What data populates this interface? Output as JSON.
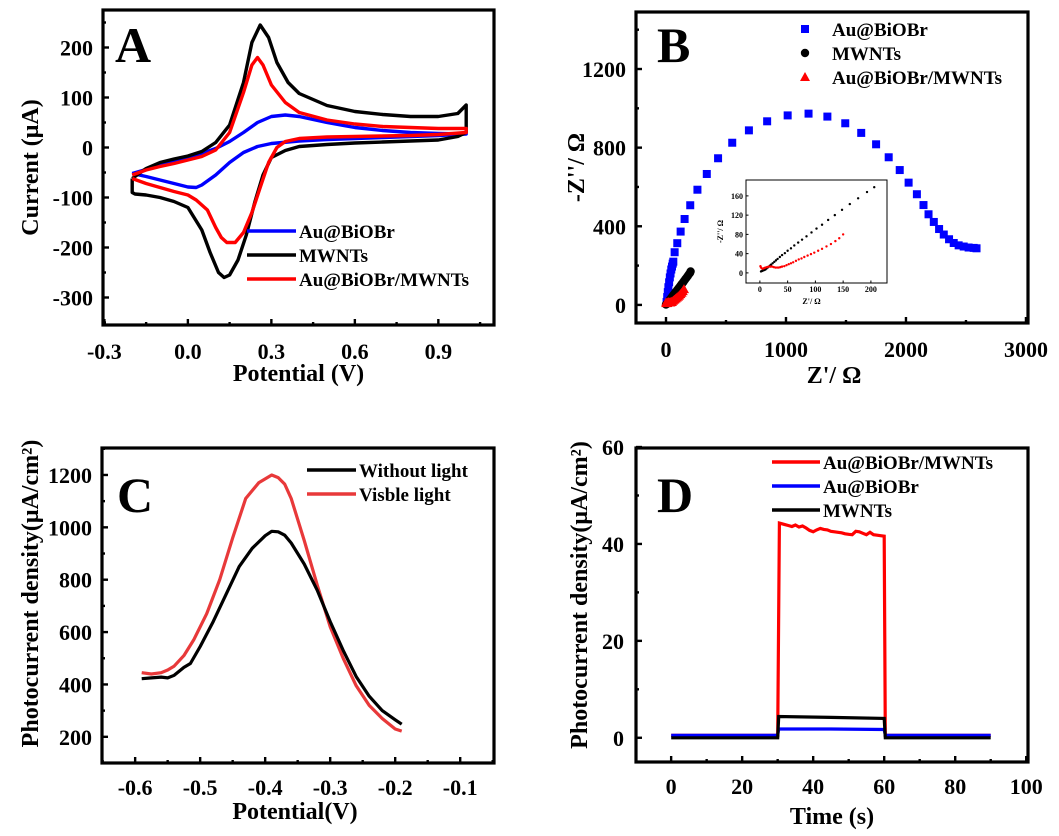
{
  "chart_data": [
    {
      "panel": "A",
      "type": "line",
      "title": "",
      "panel_label": "A",
      "xlabel": "Potential (V)",
      "ylabel": "Current (μA)",
      "xlim": [
        -0.305,
        1.1
      ],
      "ylim": [
        -355,
        275
      ],
      "xticks": [
        -0.3,
        0.0,
        0.3,
        0.6,
        0.9
      ],
      "xtick_labels": [
        "-0.3",
        "0.0",
        "0.3",
        "0.6",
        "0.9"
      ],
      "yticks": [
        -300,
        -200,
        -100,
        0,
        100,
        200
      ],
      "ytick_labels": [
        "-300",
        "-200",
        "-100",
        "0",
        "100",
        "200"
      ],
      "legend_position": "bottom-right",
      "series": [
        {
          "name": "Au@BiOBr",
          "color": "#0000ff",
          "x": [
            -0.2,
            -0.15,
            -0.1,
            -0.05,
            0.0,
            0.05,
            0.1,
            0.15,
            0.2,
            0.25,
            0.3,
            0.35,
            0.4,
            0.5,
            0.6,
            0.7,
            0.8,
            0.9,
            1.0,
            1.0,
            0.9,
            0.8,
            0.7,
            0.6,
            0.5,
            0.4,
            0.3,
            0.25,
            0.2,
            0.15,
            0.1,
            0.05,
            0.03,
            0.0,
            -0.05,
            -0.1,
            -0.15,
            -0.2
          ],
          "y": [
            -52,
            -44,
            -36,
            -28,
            -20,
            -12,
            -2,
            12,
            30,
            50,
            62,
            65,
            62,
            50,
            40,
            34,
            30,
            28,
            27,
            27,
            24,
            22,
            20,
            18,
            16,
            13,
            8,
            2,
            -10,
            -30,
            -55,
            -75,
            -80,
            -79,
            -72,
            -65,
            -58,
            -52
          ]
        },
        {
          "name": "MWNTs",
          "color": "#000000",
          "x": [
            -0.2,
            -0.15,
            -0.1,
            -0.05,
            0.0,
            0.05,
            0.1,
            0.15,
            0.2,
            0.23,
            0.26,
            0.29,
            0.32,
            0.36,
            0.4,
            0.5,
            0.6,
            0.7,
            0.8,
            0.9,
            0.97,
            1.0,
            1.0,
            0.97,
            0.93,
            0.9,
            0.8,
            0.7,
            0.6,
            0.5,
            0.4,
            0.35,
            0.3,
            0.27,
            0.24,
            0.21,
            0.18,
            0.15,
            0.13,
            0.11,
            0.08,
            0.05,
            0.0,
            -0.05,
            -0.1,
            -0.15,
            -0.19,
            -0.2,
            -0.2
          ],
          "y": [
            -62,
            -42,
            -30,
            -23,
            -17,
            -8,
            10,
            45,
            130,
            210,
            245,
            220,
            170,
            130,
            108,
            84,
            72,
            66,
            62,
            62,
            68,
            85,
            30,
            22,
            18,
            15,
            13,
            11,
            9,
            6,
            2,
            -6,
            -20,
            -55,
            -110,
            -175,
            -225,
            -255,
            -260,
            -250,
            -210,
            -165,
            -120,
            -108,
            -100,
            -95,
            -93,
            -90,
            -62
          ]
        },
        {
          "name": "Au@BiOBr/MWNTs",
          "color": "#ff0000",
          "x": [
            -0.2,
            -0.15,
            -0.1,
            -0.05,
            0.0,
            0.05,
            0.1,
            0.15,
            0.2,
            0.23,
            0.25,
            0.27,
            0.3,
            0.35,
            0.4,
            0.5,
            0.6,
            0.7,
            0.8,
            0.9,
            1.0,
            1.0,
            0.9,
            0.8,
            0.7,
            0.6,
            0.5,
            0.4,
            0.35,
            0.32,
            0.29,
            0.26,
            0.23,
            0.2,
            0.17,
            0.14,
            0.12,
            0.1,
            0.07,
            0.03,
            0.0,
            -0.05,
            -0.1,
            -0.15,
            -0.2
          ],
          "y": [
            -55,
            -45,
            -38,
            -32,
            -25,
            -18,
            -5,
            30,
            110,
            165,
            180,
            165,
            125,
            90,
            70,
            55,
            47,
            42,
            40,
            38,
            38,
            30,
            26,
            24,
            23,
            22,
            21,
            18,
            12,
            0,
            -30,
            -80,
            -130,
            -170,
            -190,
            -190,
            -180,
            -160,
            -125,
            -105,
            -95,
            -88,
            -80,
            -72,
            -62
          ]
        }
      ]
    },
    {
      "panel": "B",
      "type": "scatter",
      "title": "",
      "panel_label": "B",
      "xlabel": "Z'/ Ω",
      "ylabel": "-Z''/ Ω",
      "xlim": [
        -250,
        3017
      ],
      "ylim": [
        -92,
        1490
      ],
      "xticks": [
        0,
        1000,
        2000,
        3000
      ],
      "xtick_labels": [
        "0",
        "1000",
        "2000",
        "3000"
      ],
      "yticks": [
        0,
        400,
        800,
        1200
      ],
      "ytick_labels": [
        "0",
        "400",
        "800",
        "1200"
      ],
      "legend_position": "top-right",
      "series": [
        {
          "name": "Au@BiOBr",
          "color": "#0000ff",
          "marker": "square",
          "x": [
            5,
            10,
            15,
            20,
            26,
            32,
            38,
            44,
            50,
            56,
            61,
            72,
            94,
            122,
            155,
            202,
            262,
            340,
            434,
            552,
            691,
            843,
            1014,
            1188,
            1345,
            1494,
            1627,
            1751,
            1856,
            1948,
            2022,
            2091,
            2146,
            2188,
            2232,
            2276,
            2315,
            2359,
            2398,
            2439,
            2481,
            2522,
            2564,
            2588
          ],
          "y": [
            15,
            40,
            65,
            90,
            115,
            140,
            160,
            180,
            195,
            210,
            220,
            268,
            314,
            373,
            437,
            507,
            586,
            666,
            746,
            825,
            888,
            934,
            964,
            973,
            958,
            924,
            875,
            817,
            751,
            686,
            622,
            563,
            508,
            461,
            422,
            386,
            358,
            334,
            315,
            303,
            297,
            292,
            290,
            288
          ]
        },
        {
          "name": "MWNTs",
          "color": "#000000",
          "marker": "circle",
          "x": [
            0,
            10,
            20,
            30,
            40,
            50,
            60,
            70,
            80,
            90,
            100,
            110,
            120,
            130,
            140,
            150,
            160,
            170,
            180,
            190,
            200,
            205
          ],
          "y": [
            2,
            6,
            15,
            25,
            33,
            41,
            49,
            57,
            65,
            73,
            81,
            89,
            97,
            105,
            113,
            121,
            130,
            138,
            146,
            155,
            163,
            170
          ]
        },
        {
          "name": "Au@BiOBr/MWNTs",
          "color": "#ff0000",
          "marker": "triangle",
          "x": [
            0,
            5,
            10,
            15,
            20,
            25,
            30,
            35,
            40,
            45,
            50,
            60,
            70,
            80,
            90,
            100,
            110,
            120,
            130,
            140,
            150
          ],
          "y": [
            12,
            9,
            10,
            12,
            14,
            13,
            12,
            12,
            14,
            15,
            17,
            22,
            27,
            32,
            37,
            42,
            48,
            55,
            62,
            70,
            80
          ]
        }
      ],
      "inset": {
        "type": "scatter",
        "xlabel": "Z'/ Ω",
        "ylabel": "-Z''/ Ω",
        "xlim": [
          -25,
          229
        ],
        "ylim": [
          -21,
          193
        ],
        "xticks": [
          0,
          50,
          100,
          150,
          200
        ],
        "xtick_labels": [
          "0",
          "50",
          "100",
          "150",
          "200"
        ],
        "yticks": [
          0,
          40,
          80,
          120,
          160
        ],
        "ytick_labels": [
          "0",
          "40",
          "80",
          "120",
          "160"
        ],
        "series": [
          {
            "name": "MWNTs",
            "color": "#000000",
            "x": [
              2,
              4,
              6,
              8,
              10,
              12,
              14,
              16,
              18,
              20,
              23,
              26,
              29,
              32,
              36,
              40,
              45,
              50,
              56,
              62,
              69,
              76,
              84,
              93,
              102,
              112,
              123,
              135,
              148,
              162,
              177,
              193,
              206
            ],
            "y": [
              3,
              4,
              5,
              6,
              7,
              9,
              11,
              13,
              15,
              17,
              20,
              23,
              26,
              29,
              33,
              37,
              41,
              46,
              51,
              57,
              63,
              69,
              76,
              84,
              92,
              100,
              110,
              120,
              131,
              143,
              155,
              168,
              178
            ]
          },
          {
            "name": "Au@BiOBr/MWNTs",
            "color": "#ff0000",
            "x": [
              1,
              2,
              4,
              6,
              8,
              10,
              13,
              16,
              19,
              22,
              25,
              28,
              31,
              34,
              37,
              40,
              44,
              48,
              52,
              56,
              60,
              65,
              70,
              75,
              80,
              86,
              92,
              98,
              105,
              112,
              120,
              128,
              136,
              143,
              150
            ],
            "y": [
              14,
              11,
              9,
              9,
              10,
              11,
              12,
              13,
              13,
              13,
              12,
              11,
              11,
              11,
              12,
              13,
              14,
              16,
              18,
              20,
              22,
              25,
              28,
              30,
              33,
              36,
              39,
              42,
              46,
              50,
              55,
              60,
              66,
              72,
              80
            ]
          }
        ]
      }
    },
    {
      "panel": "C",
      "type": "line",
      "title": "",
      "panel_label": "C",
      "xlabel": "Potential(V)",
      "ylabel": "Photocurrent density(μA/cm²)",
      "xlim": [
        -0.651,
        -0.048
      ],
      "ylim": [
        100,
        1303
      ],
      "xticks": [
        -0.6,
        -0.5,
        -0.4,
        -0.3,
        -0.2,
        -0.1
      ],
      "xtick_labels": [
        "-0.6",
        "-0.5",
        "-0.4",
        "-0.3",
        "-0.2",
        "-0.1"
      ],
      "yticks": [
        200,
        400,
        600,
        800,
        1000,
        1200
      ],
      "ytick_labels": [
        "200",
        "400",
        "600",
        "800",
        "1000",
        "1200"
      ],
      "legend_position": "top-right",
      "series": [
        {
          "name": "Without light",
          "color": "#000000",
          "x": [
            -0.59,
            -0.575,
            -0.56,
            -0.55,
            -0.54,
            -0.525,
            -0.515,
            -0.5,
            -0.48,
            -0.46,
            -0.44,
            -0.42,
            -0.4,
            -0.39,
            -0.38,
            -0.37,
            -0.36,
            -0.34,
            -0.32,
            -0.3,
            -0.28,
            -0.26,
            -0.24,
            -0.22,
            -0.2,
            -0.19
          ],
          "y": [
            422,
            425,
            428,
            425,
            435,
            465,
            480,
            545,
            640,
            745,
            850,
            920,
            968,
            985,
            983,
            970,
            940,
            860,
            760,
            640,
            530,
            430,
            355,
            300,
            265,
            248
          ]
        },
        {
          "name": "Visble light",
          "color": "#e8393a",
          "x": [
            -0.59,
            -0.575,
            -0.56,
            -0.55,
            -0.54,
            -0.525,
            -0.51,
            -0.49,
            -0.47,
            -0.45,
            -0.43,
            -0.41,
            -0.4,
            -0.39,
            -0.38,
            -0.37,
            -0.36,
            -0.34,
            -0.32,
            -0.3,
            -0.28,
            -0.26,
            -0.24,
            -0.22,
            -0.2,
            -0.19
          ],
          "y": [
            445,
            440,
            445,
            455,
            470,
            510,
            570,
            670,
            800,
            960,
            1110,
            1170,
            1185,
            1200,
            1190,
            1165,
            1110,
            950,
            780,
            620,
            500,
            395,
            320,
            270,
            230,
            222
          ]
        }
      ]
    },
    {
      "panel": "D",
      "type": "line",
      "title": "",
      "panel_label": "D",
      "xlabel": "Time (s)",
      "ylabel": "Photocurrent density(μA/cm²)",
      "xlim": [
        -9.9,
        100.5
      ],
      "ylim": [
        -5,
        59.8
      ],
      "xticks": [
        0,
        20,
        40,
        60,
        80,
        100
      ],
      "xtick_labels": [
        "0",
        "20",
        "40",
        "60",
        "80",
        "100"
      ],
      "yticks": [
        0,
        20,
        40,
        60
      ],
      "ytick_labels": [
        "0",
        "20",
        "40",
        "60"
      ],
      "legend_position": "top-right",
      "series": [
        {
          "name": "Au@BiOBr/MWNTs",
          "color": "#ff0000",
          "x": [
            0,
            30,
            30.5,
            31,
            32,
            33,
            34,
            35,
            36,
            37,
            38,
            39,
            40,
            41,
            42,
            43,
            44,
            45,
            46,
            47,
            48,
            49,
            50,
            51,
            52,
            53,
            54,
            55,
            56,
            57,
            58,
            59,
            60,
            60.3,
            61,
            90
          ],
          "y": [
            0.5,
            0.5,
            44.3,
            44.2,
            44.0,
            43.8,
            43.6,
            43.9,
            43.5,
            43.7,
            43.3,
            42.8,
            42.5,
            42.9,
            43.2,
            43.0,
            42.9,
            42.6,
            42.5,
            42.4,
            42.3,
            42.1,
            42.0,
            41.9,
            42.6,
            42.5,
            42.2,
            41.9,
            42.4,
            41.9,
            41.8,
            41.7,
            41.6,
            0.5,
            0.5,
            0.5
          ]
        },
        {
          "name": "Au@BiOBr",
          "color": "#0000ff",
          "x": [
            0,
            30,
            30.3,
            45,
            60,
            60.3,
            90
          ],
          "y": [
            0.5,
            0.5,
            1.8,
            1.8,
            1.7,
            0.5,
            0.5
          ]
        },
        {
          "name": "MWNTs",
          "color": "#000000",
          "x": [
            0,
            30,
            30.3,
            45,
            60,
            60.3,
            90
          ],
          "y": [
            0,
            0,
            4.4,
            4.2,
            4.0,
            0,
            0
          ]
        }
      ]
    }
  ]
}
